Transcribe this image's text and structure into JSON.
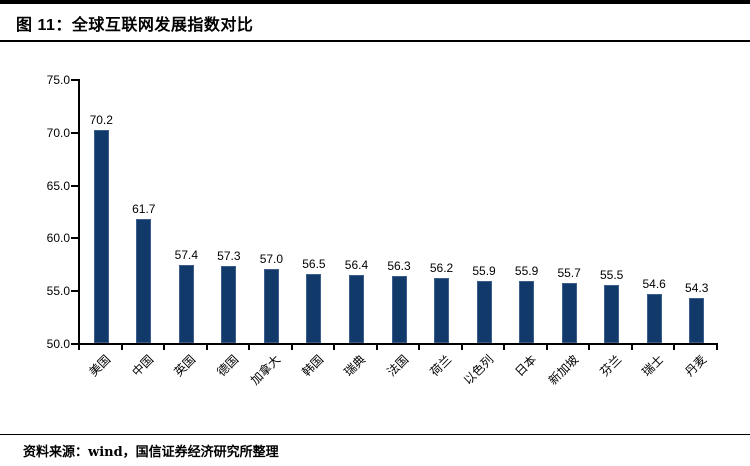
{
  "header": {
    "title": "图 11：全球互联网发展指数对比"
  },
  "footer": {
    "source": "资料来源：wind，国信证券经济研究所整理"
  },
  "colors": {
    "bar": "#113a6b",
    "axis": "#000000",
    "text": "#000000",
    "background": "#ffffff"
  },
  "chart_data": {
    "type": "bar",
    "title": "全球互联网发展指数对比",
    "categories": [
      "美国",
      "中国",
      "英国",
      "德国",
      "加拿大",
      "韩国",
      "瑞典",
      "法国",
      "荷兰",
      "以色列",
      "日本",
      "新加坡",
      "芬兰",
      "瑞士",
      "丹麦"
    ],
    "values": [
      70.2,
      61.7,
      57.4,
      57.3,
      57.0,
      56.5,
      56.4,
      56.3,
      56.2,
      55.9,
      55.9,
      55.7,
      55.5,
      54.6,
      54.3
    ],
    "xlabel": "",
    "ylabel": "",
    "ylim": [
      50,
      75
    ],
    "y_ticks": [
      50,
      55,
      60,
      65,
      70,
      75
    ],
    "y_tick_labels": [
      "50.0",
      "55.0",
      "60.0",
      "65.0",
      "70.0",
      "75.0"
    ],
    "grid": false,
    "legend": false,
    "bar_color": "#113a6b",
    "value_labels_shown": true
  }
}
